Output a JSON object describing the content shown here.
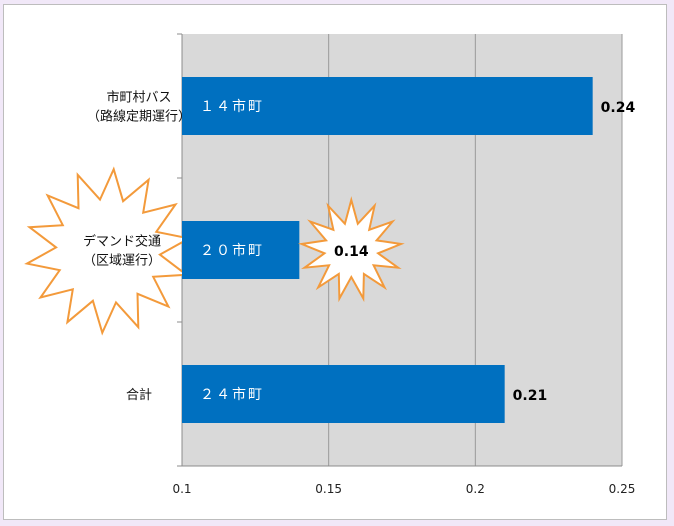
{
  "chart_data": {
    "type": "bar",
    "orientation": "horizontal",
    "categories": [
      "市町村バス|（路線定期運行）",
      "デマンド交通|（区域運行）",
      "合計"
    ],
    "values": [
      0.24,
      0.14,
      0.21
    ],
    "bar_labels": [
      "１４市町",
      "２０市町",
      "２４市町"
    ],
    "data_labels": [
      "0.24",
      "0.14",
      "0.21"
    ],
    "x_ticks": [
      "0.1",
      "0.15",
      "0.2",
      "0.25"
    ],
    "xlim": [
      0.1,
      0.25
    ],
    "grid": true,
    "colors": {
      "bar": "#0070c0",
      "plot_bg": "#d9d9d9",
      "burst_stroke": "#f39a3b",
      "burst_fill": "#ffffff"
    },
    "highlighted": [
      1
    ]
  }
}
